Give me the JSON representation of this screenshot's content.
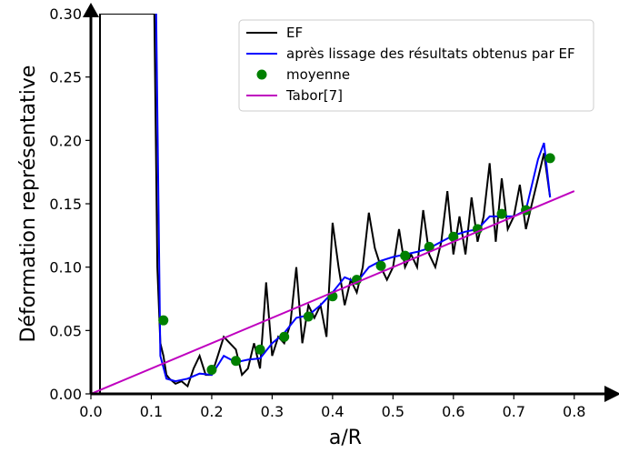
{
  "chart_data": {
    "type": "line",
    "xlabel": "a/R",
    "ylabel": "Déformation représentative",
    "xlim": [
      0,
      0.85
    ],
    "ylim": [
      0,
      0.3
    ],
    "xticks": [
      {
        "value": 0,
        "label": "0.0"
      },
      {
        "value": 0.1,
        "label": "0.1"
      },
      {
        "value": 0.2,
        "label": "0.2"
      },
      {
        "value": 0.3,
        "label": "0.3"
      },
      {
        "value": 0.4,
        "label": "0.4"
      },
      {
        "value": 0.5,
        "label": "0.5"
      },
      {
        "value": 0.6,
        "label": "0.6"
      },
      {
        "value": 0.7,
        "label": "0.7"
      },
      {
        "value": 0.8,
        "label": "0.8"
      }
    ],
    "yticks": [
      {
        "value": 0,
        "label": "0.00"
      },
      {
        "value": 0.05,
        "label": "0.05"
      },
      {
        "value": 0.1,
        "label": "0.10"
      },
      {
        "value": 0.15,
        "label": "0.15"
      },
      {
        "value": 0.2,
        "label": "0.20"
      },
      {
        "value": 0.25,
        "label": "0.25"
      },
      {
        "value": 0.3,
        "label": "0.30"
      }
    ],
    "legend": "upper right",
    "series": [
      {
        "name": "EF",
        "type": "line",
        "color": "#000000",
        "x": [
          0.015,
          0.015,
          0.105,
          0.11,
          0.115,
          0.12,
          0.125,
          0.13,
          0.14,
          0.15,
          0.16,
          0.17,
          0.18,
          0.19,
          0.2,
          0.21,
          0.22,
          0.23,
          0.24,
          0.25,
          0.26,
          0.27,
          0.28,
          0.29,
          0.3,
          0.31,
          0.32,
          0.33,
          0.34,
          0.35,
          0.36,
          0.37,
          0.38,
          0.39,
          0.4,
          0.41,
          0.42,
          0.43,
          0.44,
          0.45,
          0.46,
          0.47,
          0.48,
          0.49,
          0.5,
          0.51,
          0.52,
          0.53,
          0.54,
          0.55,
          0.56,
          0.57,
          0.58,
          0.59,
          0.6,
          0.61,
          0.62,
          0.63,
          0.64,
          0.65,
          0.66,
          0.67,
          0.68,
          0.69,
          0.7,
          0.71,
          0.72,
          0.73,
          0.74,
          0.75,
          0.76
        ],
        "values": [
          0.0,
          0.3,
          0.3,
          0.1,
          0.04,
          0.03,
          0.015,
          0.012,
          0.008,
          0.01,
          0.006,
          0.02,
          0.03,
          0.015,
          0.015,
          0.03,
          0.045,
          0.04,
          0.035,
          0.015,
          0.02,
          0.04,
          0.02,
          0.088,
          0.03,
          0.045,
          0.04,
          0.055,
          0.1,
          0.04,
          0.07,
          0.06,
          0.07,
          0.045,
          0.135,
          0.1,
          0.07,
          0.09,
          0.08,
          0.1,
          0.143,
          0.115,
          0.1,
          0.09,
          0.1,
          0.13,
          0.1,
          0.11,
          0.1,
          0.145,
          0.11,
          0.1,
          0.12,
          0.16,
          0.11,
          0.14,
          0.11,
          0.155,
          0.12,
          0.14,
          0.182,
          0.12,
          0.17,
          0.13,
          0.14,
          0.165,
          0.13,
          0.15,
          0.17,
          0.19,
          0.155
        ]
      },
      {
        "name": "après lissage des résultats obtenus par EF",
        "type": "line",
        "color": "#0000ff",
        "x": [
          0.108,
          0.115,
          0.125,
          0.14,
          0.16,
          0.18,
          0.2,
          0.22,
          0.24,
          0.26,
          0.28,
          0.3,
          0.32,
          0.34,
          0.36,
          0.38,
          0.4,
          0.42,
          0.44,
          0.46,
          0.48,
          0.5,
          0.52,
          0.54,
          0.56,
          0.58,
          0.6,
          0.62,
          0.64,
          0.66,
          0.68,
          0.7,
          0.72,
          0.74,
          0.75,
          0.76
        ],
        "values": [
          0.3,
          0.03,
          0.012,
          0.01,
          0.012,
          0.016,
          0.015,
          0.03,
          0.025,
          0.027,
          0.028,
          0.04,
          0.048,
          0.06,
          0.062,
          0.07,
          0.08,
          0.092,
          0.088,
          0.1,
          0.105,
          0.108,
          0.11,
          0.112,
          0.115,
          0.12,
          0.125,
          0.128,
          0.13,
          0.14,
          0.14,
          0.14,
          0.145,
          0.185,
          0.198,
          0.155
        ]
      },
      {
        "name": "moyenne",
        "type": "scatter",
        "color": "#008000",
        "x": [
          0.12,
          0.2,
          0.24,
          0.28,
          0.32,
          0.36,
          0.4,
          0.44,
          0.48,
          0.52,
          0.56,
          0.6,
          0.64,
          0.68,
          0.72,
          0.76
        ],
        "values": [
          0.058,
          0.019,
          0.026,
          0.035,
          0.045,
          0.061,
          0.077,
          0.09,
          0.101,
          0.109,
          0.116,
          0.124,
          0.13,
          0.142,
          0.145,
          0.186
        ]
      },
      {
        "name": "Tabor[7]",
        "type": "line",
        "color": "#bf00bf",
        "x": [
          0,
          0.8
        ],
        "values": [
          0,
          0.16
        ]
      }
    ]
  }
}
